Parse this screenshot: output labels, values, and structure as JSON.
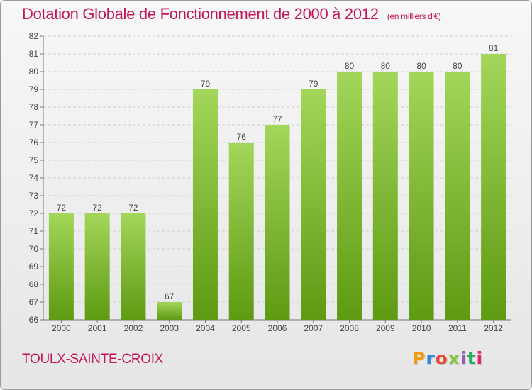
{
  "header": {
    "title": "Dotation Globale de Fonctionnement de 2000 à 2012",
    "unit": "(en milliers d'€)"
  },
  "footer": {
    "commune": "TOULX-SAINTE-CROIX",
    "brand": "Proxiti",
    "brand_colors": [
      "#f39c12",
      "#2e86de",
      "#e74c3c",
      "#8bc34a",
      "#9b59b6",
      "#27ae60",
      "#e91e63"
    ]
  },
  "colors": {
    "bar_top": "#a3d65a",
    "bar_bottom": "#5e9a12",
    "accent": "#c2185b"
  },
  "chart_data": {
    "type": "bar",
    "title": "Dotation Globale de Fonctionnement de 2000 à 2012",
    "subtitle": "(en milliers d'€)",
    "categories": [
      "2000",
      "2001",
      "2002",
      "2003",
      "2004",
      "2005",
      "2006",
      "2007",
      "2008",
      "2009",
      "2010",
      "2011",
      "2012"
    ],
    "values": [
      72,
      72,
      72,
      67,
      79,
      76,
      77,
      79,
      80,
      80,
      80,
      80,
      81
    ],
    "ylim": [
      66,
      82
    ],
    "yticks": [
      66,
      67,
      68,
      69,
      70,
      71,
      72,
      73,
      74,
      75,
      76,
      77,
      78,
      79,
      80,
      81,
      82
    ],
    "grid": true,
    "xlabel": "",
    "ylabel": ""
  }
}
